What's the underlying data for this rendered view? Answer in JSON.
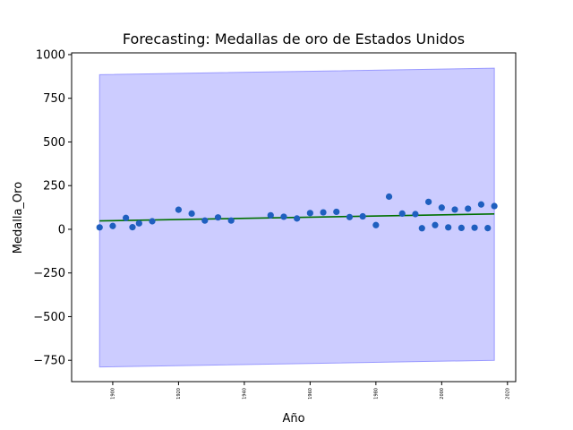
{
  "chart_data": {
    "type": "scatter",
    "title": "Forecasting: Medallas de oro de Estados Unidos",
    "xlabel": "Año",
    "ylabel": "Medalla_Oro",
    "xlim": [
      1887.5,
      2022.5
    ],
    "ylim": [
      -872,
      1010
    ],
    "xticks": [
      1900,
      1920,
      1940,
      1960,
      1980,
      2000,
      2020
    ],
    "yticks": [
      -750,
      -500,
      -250,
      0,
      250,
      500,
      750,
      1000
    ],
    "grid": false,
    "legend": "none",
    "colors": {
      "points": "#1f5fbf",
      "trend": "#007000",
      "band_fill": "#ccccff",
      "band_edge": "#9999ff"
    },
    "series": [
      {
        "kind": "points",
        "x": [
          1896,
          1900,
          1904,
          1906,
          1908,
          1912,
          1920,
          1924,
          1928,
          1932,
          1936,
          1948,
          1952,
          1956,
          1960,
          1964,
          1968,
          1972,
          1976,
          1980,
          1984,
          1988,
          1992,
          1994,
          1996,
          1998,
          2000,
          2002,
          2004,
          2006,
          2008,
          2010,
          2012,
          2014,
          2016
        ],
        "values": [
          11,
          19,
          65,
          12,
          34,
          46,
          112,
          90,
          50,
          68,
          50,
          80,
          72,
          62,
          93,
          97,
          100,
          70,
          74,
          24,
          187,
          90,
          87,
          6,
          157,
          24,
          124,
          11,
          113,
          8,
          118,
          9,
          142,
          7,
          133
        ]
      },
      {
        "kind": "trend",
        "x": [
          1896,
          2016
        ],
        "values": [
          48,
          88
        ]
      },
      {
        "kind": "band",
        "x": [
          1896,
          2016
        ],
        "upper": [
          885,
          922
        ],
        "lower": [
          -788,
          -750
        ]
      }
    ]
  }
}
